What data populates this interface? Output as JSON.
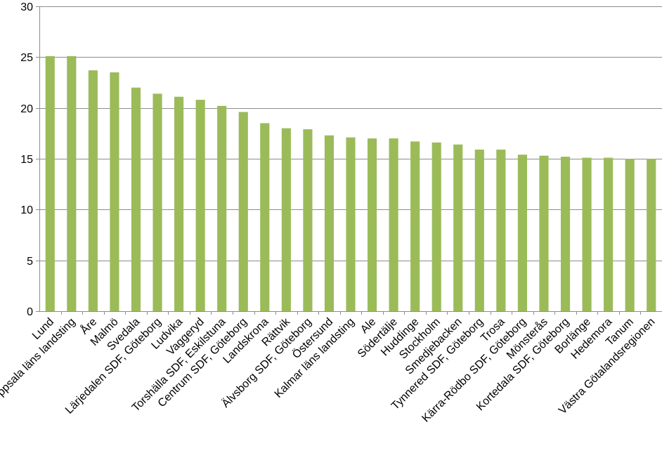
{
  "chart_data": {
    "type": "bar",
    "title": "",
    "xlabel": "",
    "ylabel": "",
    "ylim": [
      0,
      30
    ],
    "yticks": [
      0,
      5,
      10,
      15,
      20,
      25,
      30
    ],
    "grid": "horizontal",
    "legend": "none",
    "bar_color": "#9BBB59",
    "categories": [
      "Lund",
      "Uppsala läns landsting",
      "Åre",
      "Malmö",
      "Svedala",
      "Lärjedalen SDF, Göteborg",
      "Ludvika",
      "Vaggeryd",
      "Torshälla SDF, Eskilstuna",
      "Centrum SDF, Göteborg",
      "Landskrona",
      "Rättvik",
      "Älvsborg SDF, Göteborg",
      "Östersund",
      "Kalmar läns landsting",
      "Ale",
      "Södertälje",
      "Huddinge",
      "Stockholm",
      "Smedjebacken",
      "Tynnered SDF, Göteborg",
      "Trosa",
      "Kärra-Rödbo SDF, Göteborg",
      "Mönsterås",
      "Kortedala SDF, Göteborg",
      "Borlänge",
      "Hedemora",
      "Tanum",
      "Västra Götalandsregionen"
    ],
    "values": [
      25.1,
      25.1,
      23.7,
      23.5,
      22.0,
      21.4,
      21.1,
      20.8,
      20.2,
      19.6,
      18.5,
      18.0,
      17.9,
      17.3,
      17.1,
      17.0,
      17.0,
      16.7,
      16.6,
      16.4,
      15.9,
      15.9,
      15.4,
      15.3,
      15.2,
      15.1,
      15.1,
      15.0,
      15.0
    ]
  }
}
